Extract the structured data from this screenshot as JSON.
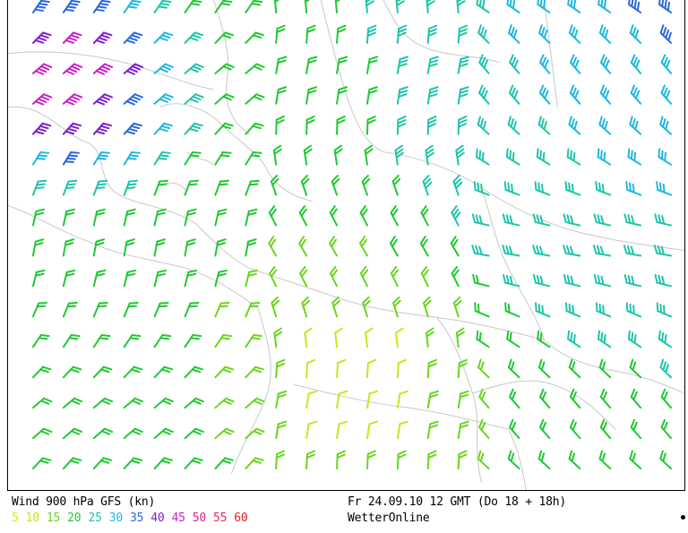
{
  "footer": {
    "title": "Wind 900 hPa GFS (kn)",
    "date": "Fr 24.09.10 12 GMT (Do 18 + 18h)",
    "brand": "WetterOnline"
  },
  "legend": [
    {
      "label": "5",
      "color": "#e5e51a"
    },
    {
      "label": "10",
      "color": "#c8e619"
    },
    {
      "label": "15",
      "color": "#6ad51f"
    },
    {
      "label": "20",
      "color": "#1fc932"
    },
    {
      "label": "25",
      "color": "#1fc5a9"
    },
    {
      "label": "30",
      "color": "#1fb7e0"
    },
    {
      "label": "35",
      "color": "#2a68df"
    },
    {
      "label": "40",
      "color": "#7d1fcf"
    },
    {
      "label": "45",
      "color": "#c81fc8"
    },
    {
      "label": "50",
      "color": "#e01f8f"
    },
    {
      "label": "55",
      "color": "#e82a55"
    },
    {
      "label": "60",
      "color": "#e81f1f"
    }
  ],
  "map": {
    "border_color": "#c8c8c8",
    "background": "#ffffff"
  }
}
